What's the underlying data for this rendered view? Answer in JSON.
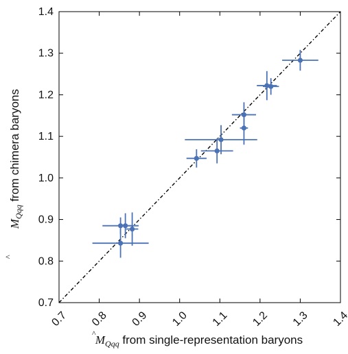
{
  "chart_data": {
    "type": "scatter",
    "xlabel": {
      "symbol": "M",
      "subscript": "Qqq",
      "text": " from single-representation baryons"
    },
    "ylabel": {
      "symbol": "M",
      "subscript": "Qqq",
      "text": " from chimera baryons"
    },
    "xlim": [
      0.7,
      1.4
    ],
    "ylim": [
      0.7,
      1.4
    ],
    "xticks": [
      "0.7",
      "0.8",
      "0.9",
      "1.0",
      "1.1",
      "1.2",
      "1.3",
      "1.4"
    ],
    "yticks": [
      "0.7",
      "0.8",
      "0.9",
      "1.0",
      "1.1",
      "1.2",
      "1.3",
      "1.4"
    ],
    "reference_line": {
      "style": "dash-dot",
      "x": [
        0.7,
        1.4
      ],
      "y": [
        0.7,
        1.4
      ]
    },
    "grid": false,
    "colors": {
      "points": "#4a72b5",
      "reference_line": "#000000"
    },
    "points": [
      {
        "x": 0.853,
        "y": 0.843,
        "xerr": 0.07,
        "yerr": 0.035
      },
      {
        "x": 0.853,
        "y": 0.885,
        "xerr": 0.045,
        "yerr": 0.02
      },
      {
        "x": 0.865,
        "y": 0.885,
        "xerr": 0.015,
        "yerr": 0.03
      },
      {
        "x": 0.882,
        "y": 0.877,
        "xerr": 0.015,
        "yerr": 0.04
      },
      {
        "x": 1.042,
        "y": 1.047,
        "xerr": 0.025,
        "yerr": 0.022
      },
      {
        "x": 1.093,
        "y": 1.065,
        "xerr": 0.04,
        "yerr": 0.03
      },
      {
        "x": 1.103,
        "y": 1.092,
        "xerr": 0.09,
        "yerr": 0.035
      },
      {
        "x": 1.16,
        "y": 1.12,
        "xerr": 0.01,
        "yerr": 0.04
      },
      {
        "x": 1.16,
        "y": 1.152,
        "xerr": 0.03,
        "yerr": 0.03
      },
      {
        "x": 1.217,
        "y": 1.222,
        "xerr": 0.025,
        "yerr": 0.035
      },
      {
        "x": 1.227,
        "y": 1.22,
        "xerr": 0.02,
        "yerr": 0.02
      },
      {
        "x": 1.3,
        "y": 1.283,
        "xerr": 0.045,
        "yerr": 0.025
      }
    ]
  }
}
